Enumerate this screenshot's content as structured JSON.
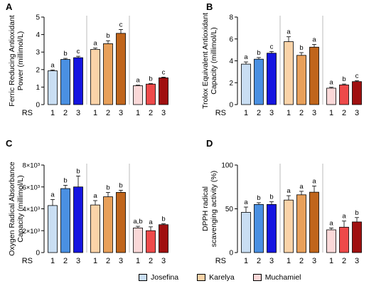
{
  "legend": [
    {
      "label": "Josefina",
      "color": "#c9def3"
    },
    {
      "label": "Karelya",
      "color": "#fad3a8"
    },
    {
      "label": "Muchamiel",
      "color": "#fad8d8"
    }
  ],
  "chart_data": [
    {
      "panel": "A",
      "type": "bar",
      "ylabel": "Ferric Reducing Antioxidant\nPower (millimol/L)",
      "xlabel": "RS",
      "ylim": [
        0,
        5
      ],
      "yticks": [
        "0",
        "1",
        "2",
        "3",
        "4",
        "5"
      ],
      "groups": [
        {
          "name": "Josefina",
          "categories": [
            "1",
            "2",
            "3"
          ],
          "values": [
            1.93,
            2.58,
            2.68
          ],
          "errors": [
            0.05,
            0.06,
            0.08
          ],
          "letters": [
            "a",
            "b",
            "c"
          ],
          "colors": [
            "#c9def3",
            "#4a90e2",
            "#1515e0"
          ]
        },
        {
          "name": "Karelya",
          "categories": [
            "1",
            "2",
            "3"
          ],
          "values": [
            3.15,
            3.48,
            4.07
          ],
          "errors": [
            0.08,
            0.17,
            0.22
          ],
          "letters": [
            "a",
            "b",
            "c"
          ],
          "colors": [
            "#fad3a8",
            "#e8a05a",
            "#c0651b"
          ]
        },
        {
          "name": "Muchamiel",
          "categories": [
            "1",
            "2",
            "3"
          ],
          "values": [
            1.08,
            1.17,
            1.53
          ],
          "errors": [
            0.03,
            0.03,
            0.04
          ],
          "letters": [
            "a",
            "b",
            "c"
          ],
          "colors": [
            "#fad8d8",
            "#ee4a4a",
            "#a01010"
          ]
        }
      ]
    },
    {
      "panel": "B",
      "type": "bar",
      "ylabel": "Trolox Equivalent Antioxidant\nCapacity (millimol/L)",
      "xlabel": "RS",
      "ylim": [
        0,
        8
      ],
      "yticks": [
        "0",
        "2",
        "4",
        "6",
        "8"
      ],
      "groups": [
        {
          "name": "Josefina",
          "categories": [
            "1",
            "2",
            "3"
          ],
          "values": [
            3.7,
            4.15,
            4.7
          ],
          "errors": [
            0.2,
            0.15,
            0.15
          ],
          "letters": [
            "a",
            "b",
            "c"
          ],
          "colors": [
            "#c9def3",
            "#4a90e2",
            "#1515e0"
          ]
        },
        {
          "name": "Karelya",
          "categories": [
            "1",
            "2",
            "3"
          ],
          "values": [
            5.75,
            4.5,
            5.25
          ],
          "errors": [
            0.45,
            0.25,
            0.25
          ],
          "letters": [
            "a",
            "b",
            "a"
          ],
          "colors": [
            "#fad3a8",
            "#e8a05a",
            "#c0651b"
          ]
        },
        {
          "name": "Muchamiel",
          "categories": [
            "1",
            "2",
            "3"
          ],
          "values": [
            1.5,
            1.8,
            2.1
          ],
          "errors": [
            0.08,
            0.08,
            0.08
          ],
          "letters": [
            "a",
            "b",
            "c"
          ],
          "colors": [
            "#fad8d8",
            "#ee4a4a",
            "#a01010"
          ]
        }
      ]
    },
    {
      "panel": "C",
      "type": "bar",
      "ylabel": "Oxygen Radical Absorbance\nCapacity (millimol/L)",
      "xlabel": "RS",
      "ylim": [
        0,
        8000
      ],
      "yticks": [
        "0",
        "2×10³",
        "4×10³",
        "6×10³",
        "8×10³"
      ],
      "groups": [
        {
          "name": "Josefina",
          "categories": [
            "1",
            "2",
            "3"
          ],
          "values": [
            4300,
            5850,
            6000
          ],
          "errors": [
            550,
            300,
            1000
          ],
          "letters": [
            "a",
            "b",
            "b"
          ],
          "colors": [
            "#c9def3",
            "#4a90e2",
            "#1515e0"
          ]
        },
        {
          "name": "Karelya",
          "categories": [
            "1",
            "2",
            "3"
          ],
          "values": [
            4350,
            5100,
            5500
          ],
          "errors": [
            400,
            400,
            200
          ],
          "letters": [
            "a",
            "b",
            "b"
          ],
          "colors": [
            "#fad3a8",
            "#e8a05a",
            "#c0651b"
          ]
        },
        {
          "name": "Muchamiel",
          "categories": [
            "1",
            "2",
            "3"
          ],
          "values": [
            2250,
            2000,
            2550
          ],
          "errors": [
            150,
            350,
            80
          ],
          "letters": [
            "a,b",
            "a",
            "b"
          ],
          "colors": [
            "#fad8d8",
            "#ee4a4a",
            "#a01010"
          ]
        }
      ]
    },
    {
      "panel": "D",
      "type": "bar",
      "ylabel": "DPPH radical\nscavenging activity (%)",
      "xlabel": "RS",
      "ylim": [
        0,
        100
      ],
      "yticks": [
        "0",
        "50",
        "100"
      ],
      "groups": [
        {
          "name": "Josefina",
          "categories": [
            "1",
            "2",
            "3"
          ],
          "values": [
            46,
            55,
            55
          ],
          "errors": [
            6,
            2,
            3
          ],
          "letters": [
            "a",
            "b",
            "b"
          ],
          "colors": [
            "#c9def3",
            "#4a90e2",
            "#1515e0"
          ]
        },
        {
          "name": "Karelya",
          "categories": [
            "1",
            "2",
            "3"
          ],
          "values": [
            60,
            66,
            69
          ],
          "errors": [
            5,
            4,
            7
          ],
          "letters": [
            "a",
            "a",
            "a"
          ],
          "colors": [
            "#fad3a8",
            "#e8a05a",
            "#c0651b"
          ]
        },
        {
          "name": "Muchamiel",
          "categories": [
            "1",
            "2",
            "3"
          ],
          "values": [
            26,
            29,
            35
          ],
          "errors": [
            2,
            7,
            5
          ],
          "letters": [
            "a",
            "a",
            "b"
          ],
          "colors": [
            "#fad8d8",
            "#ee4a4a",
            "#a01010"
          ]
        }
      ]
    }
  ]
}
